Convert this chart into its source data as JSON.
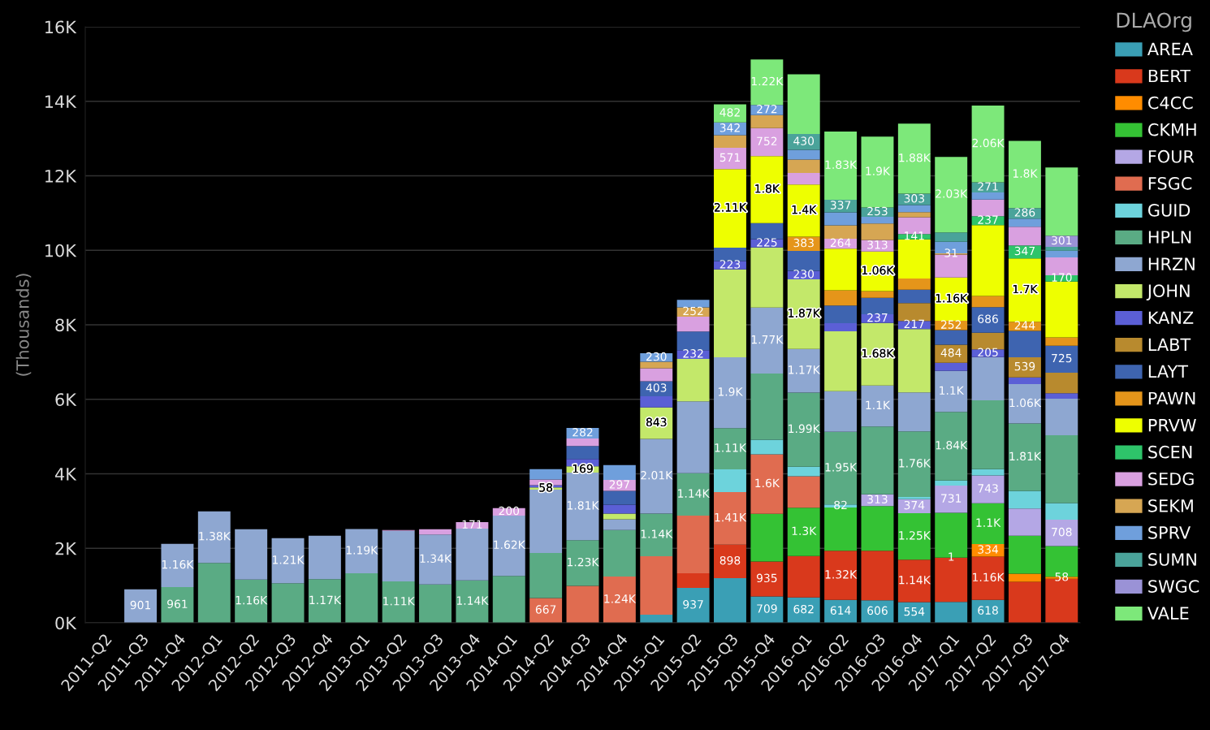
{
  "chart_data": {
    "type": "bar",
    "stacked": true,
    "ylabel": "(Thousands)",
    "legend_title": "DLAOrg",
    "legend": "right",
    "grid": "y",
    "ylim": [
      0,
      16000
    ],
    "yticks": [
      {
        "value": 0,
        "label": "0K"
      },
      {
        "value": 2000,
        "label": "2K"
      },
      {
        "value": 4000,
        "label": "4K"
      },
      {
        "value": 6000,
        "label": "6K"
      },
      {
        "value": 8000,
        "label": "8K"
      },
      {
        "value": 10000,
        "label": "10K"
      },
      {
        "value": 12000,
        "label": "12K"
      },
      {
        "value": 14000,
        "label": "14K"
      },
      {
        "value": 16000,
        "label": "16K"
      }
    ],
    "categories": [
      "2011-Q2",
      "2011-Q3",
      "2011-Q4",
      "2012-Q1",
      "2012-Q2",
      "2012-Q3",
      "2012-Q4",
      "2013-Q1",
      "2013-Q2",
      "2013-Q3",
      "2013-Q4",
      "2014-Q1",
      "2014-Q2",
      "2014-Q3",
      "2014-Q4",
      "2015-Q1",
      "2015-Q2",
      "2015-Q3",
      "2015-Q4",
      "2016-Q1",
      "2016-Q2",
      "2016-Q3",
      "2016-Q4",
      "2017-Q1",
      "2017-Q2",
      "2017-Q3",
      "2017-Q4"
    ],
    "series": [
      {
        "name": "AREA",
        "color": "#3a9fb5",
        "values": [
          null,
          null,
          null,
          null,
          null,
          null,
          null,
          null,
          null,
          null,
          null,
          null,
          null,
          null,
          null,
          220,
          937,
          1200,
          709,
          682,
          614,
          606,
          554,
          560,
          618,
          null,
          null
        ],
        "value_labels": [
          null,
          null,
          null,
          null,
          null,
          null,
          null,
          null,
          null,
          null,
          null,
          null,
          null,
          null,
          null,
          null,
          "937",
          null,
          "709",
          "682",
          "614",
          "606",
          "554",
          null,
          "618",
          null,
          null
        ]
      },
      {
        "name": "BERT",
        "color": "#d9391c",
        "values": [
          null,
          null,
          null,
          null,
          null,
          null,
          null,
          null,
          null,
          null,
          null,
          null,
          null,
          null,
          null,
          null,
          390,
          898,
          935,
          1110,
          1320,
          1330,
          1140,
          1190,
          1160,
          1100,
          1180
        ],
        "value_labels": [
          null,
          null,
          null,
          null,
          null,
          null,
          null,
          null,
          null,
          null,
          null,
          null,
          null,
          null,
          null,
          null,
          null,
          "898",
          "935",
          null,
          "1.32K",
          null,
          "1.14K",
          null,
          "1.16K",
          null,
          null
        ]
      },
      {
        "name": "C4CC",
        "color": "#ff8c00",
        "values": [
          null,
          null,
          null,
          null,
          null,
          null,
          null,
          null,
          null,
          null,
          null,
          null,
          null,
          null,
          null,
          null,
          null,
          null,
          null,
          null,
          null,
          null,
          null,
          1,
          334,
          220,
          58
        ],
        "value_labels": [
          null,
          null,
          null,
          null,
          null,
          null,
          null,
          null,
          null,
          null,
          null,
          null,
          null,
          null,
          null,
          null,
          null,
          null,
          null,
          null,
          null,
          null,
          null,
          "1",
          "334",
          null,
          "58"
        ]
      },
      {
        "name": "CKMH",
        "color": "#34c234",
        "values": [
          null,
          null,
          null,
          null,
          null,
          null,
          null,
          null,
          null,
          null,
          null,
          null,
          null,
          null,
          null,
          null,
          null,
          null,
          1280,
          1300,
          1160,
          1200,
          1250,
          1200,
          1100,
          1020,
          820
        ],
        "value_labels": [
          null,
          null,
          null,
          null,
          null,
          null,
          null,
          null,
          null,
          null,
          null,
          null,
          null,
          null,
          null,
          null,
          null,
          null,
          null,
          "1.3K",
          null,
          null,
          "1.25K",
          null,
          "1.1K",
          null,
          null
        ]
      },
      {
        "name": "FOUR",
        "color": "#b4a7e5",
        "values": [
          null,
          null,
          null,
          null,
          null,
          null,
          null,
          null,
          null,
          null,
          null,
          null,
          null,
          null,
          null,
          null,
          null,
          null,
          null,
          null,
          null,
          313,
          374,
          731,
          743,
          730,
          708
        ],
        "value_labels": [
          null,
          null,
          null,
          null,
          null,
          null,
          null,
          null,
          null,
          null,
          null,
          null,
          null,
          null,
          null,
          null,
          null,
          null,
          null,
          null,
          null,
          "313",
          "374",
          "731",
          "743",
          null,
          "708"
        ]
      },
      {
        "name": "FSGC",
        "color": "#e06c50",
        "values": [
          null,
          null,
          null,
          null,
          null,
          null,
          null,
          null,
          null,
          null,
          null,
          null,
          667,
          990,
          1240,
          1570,
          1550,
          1410,
          1600,
          840,
          null,
          null,
          null,
          null,
          null,
          null,
          null
        ],
        "value_labels": [
          null,
          null,
          null,
          null,
          null,
          null,
          null,
          null,
          null,
          null,
          null,
          null,
          "667",
          null,
          "1.24K",
          null,
          null,
          "1.41K",
          "1.6K",
          null,
          null,
          null,
          null,
          null,
          null,
          null,
          null
        ]
      },
      {
        "name": "GUID",
        "color": "#6dd3dc",
        "values": [
          null,
          null,
          null,
          null,
          null,
          null,
          null,
          null,
          null,
          null,
          null,
          null,
          null,
          null,
          null,
          null,
          null,
          610,
          390,
          260,
          82,
          null,
          60,
          140,
          170,
          470,
          450
        ],
        "value_labels": [
          null,
          null,
          null,
          null,
          null,
          null,
          null,
          null,
          null,
          null,
          null,
          null,
          null,
          null,
          null,
          null,
          null,
          null,
          null,
          null,
          "82",
          null,
          null,
          null,
          null,
          null,
          null
        ]
      },
      {
        "name": "HPLN",
        "color": "#5aab84",
        "values": [
          null,
          null,
          961,
          1610,
          1160,
          1060,
          1170,
          1330,
          1110,
          1030,
          1140,
          1260,
          1210,
          1230,
          1250,
          1140,
          1140,
          1110,
          1780,
          1990,
          1950,
          1820,
          1760,
          1840,
          1850,
          1810,
          1820
        ],
        "value_labels": [
          null,
          null,
          "961",
          null,
          "1.16K",
          null,
          "1.17K",
          null,
          "1.11K",
          null,
          "1.14K",
          null,
          null,
          "1.23K",
          null,
          "1.14K",
          "1.14K",
          "1.11K",
          null,
          "1.99K",
          "1.95K",
          null,
          "1.76K",
          "1.84K",
          null,
          "1.81K",
          null
        ]
      },
      {
        "name": "HRZN",
        "color": "#8ea7d1",
        "values": [
          null,
          901,
          1160,
          1380,
          1350,
          1210,
          1170,
          1190,
          1360,
          1340,
          1390,
          1620,
          1700,
          1810,
          290,
          2010,
          1930,
          1900,
          1770,
          1170,
          1090,
          1100,
          1050,
          1100,
          1160,
          1060,
          980
        ],
        "value_labels": [
          null,
          "901",
          "1.16K",
          "1.38K",
          null,
          "1.21K",
          null,
          "1.19K",
          null,
          "1.34K",
          null,
          "1.62K",
          null,
          "1.81K",
          null,
          "2.01K",
          null,
          "1.9K",
          "1.77K",
          "1.17K",
          null,
          "1.1K",
          null,
          "1.1K",
          null,
          "1.06K",
          null
        ]
      },
      {
        "name": "JOHN",
        "color": "#c3e86a",
        "values": [
          null,
          null,
          null,
          null,
          null,
          null,
          null,
          null,
          null,
          null,
          null,
          null,
          58,
          169,
          150,
          843,
          1140,
          2360,
          1610,
          1870,
          1610,
          1680,
          1700,
          null,
          null,
          null,
          null
        ],
        "value_labels": [
          null,
          null,
          null,
          null,
          null,
          null,
          null,
          null,
          null,
          null,
          null,
          null,
          "58",
          "169",
          null,
          "843",
          null,
          null,
          null,
          "1.87K",
          null,
          "1.68K",
          null,
          null,
          null,
          null,
          null
        ]
      },
      {
        "name": "KANZ",
        "color": "#5b5fd6",
        "values": [
          null,
          null,
          null,
          null,
          null,
          null,
          null,
          null,
          null,
          null,
          null,
          null,
          60,
          200,
          240,
          300,
          232,
          223,
          225,
          230,
          220,
          237,
          217,
          220,
          205,
          180,
          150
        ],
        "value_labels": [
          null,
          null,
          null,
          null,
          null,
          null,
          null,
          null,
          null,
          null,
          null,
          null,
          null,
          null,
          null,
          null,
          "232",
          "223",
          "225",
          "230",
          null,
          "237",
          "217",
          null,
          "205",
          null,
          null
        ]
      },
      {
        "name": "LABT",
        "color": "#b88a2e",
        "values": [
          null,
          null,
          null,
          null,
          null,
          null,
          null,
          null,
          null,
          null,
          null,
          null,
          null,
          null,
          null,
          null,
          null,
          null,
          null,
          null,
          null,
          null,
          480,
          484,
          450,
          539,
          550
        ],
        "value_labels": [
          null,
          null,
          null,
          null,
          null,
          null,
          null,
          null,
          null,
          null,
          null,
          null,
          null,
          null,
          null,
          null,
          null,
          null,
          null,
          null,
          null,
          null,
          null,
          "484",
          null,
          "539",
          null
        ]
      },
      {
        "name": "LAYT",
        "color": "#3e64b0",
        "values": [
          null,
          null,
          null,
          null,
          null,
          null,
          null,
          null,
          null,
          null,
          null,
          null,
          null,
          350,
          370,
          403,
          500,
          360,
          430,
          530,
          470,
          440,
          360,
          390,
          686,
          710,
          725
        ],
        "value_labels": [
          null,
          null,
          null,
          null,
          null,
          null,
          null,
          null,
          null,
          null,
          null,
          null,
          null,
          null,
          null,
          "403",
          null,
          null,
          null,
          null,
          null,
          null,
          null,
          null,
          "686",
          null,
          "725"
        ]
      },
      {
        "name": "PAWN",
        "color": "#e5951a",
        "values": [
          null,
          null,
          null,
          null,
          null,
          null,
          null,
          null,
          null,
          null,
          null,
          null,
          null,
          null,
          null,
          null,
          null,
          null,
          null,
          383,
          410,
          180,
          300,
          252,
          300,
          244,
          220
        ],
        "value_labels": [
          null,
          null,
          null,
          null,
          null,
          null,
          null,
          null,
          null,
          null,
          null,
          null,
          null,
          null,
          null,
          null,
          null,
          null,
          null,
          "383",
          null,
          null,
          null,
          "252",
          null,
          "244",
          null
        ]
      },
      {
        "name": "PRVW",
        "color": "#eeff00",
        "values": [
          null,
          null,
          null,
          null,
          null,
          null,
          null,
          null,
          null,
          null,
          null,
          null,
          null,
          null,
          null,
          null,
          null,
          2110,
          1800,
          1400,
          1120,
          1060,
          1050,
          1160,
          1900,
          1700,
          1500
        ],
        "value_labels": [
          null,
          null,
          null,
          null,
          null,
          null,
          null,
          null,
          null,
          null,
          null,
          null,
          null,
          null,
          null,
          null,
          null,
          "2.11K",
          "1.8K",
          "1.4K",
          null,
          "1.06K",
          null,
          "1.16K",
          null,
          "1.7K",
          null
        ]
      },
      {
        "name": "SCEN",
        "color": "#2ec46a",
        "values": [
          null,
          null,
          null,
          null,
          null,
          null,
          null,
          null,
          null,
          null,
          null,
          null,
          null,
          null,
          null,
          null,
          null,
          null,
          null,
          null,
          null,
          null,
          141,
          null,
          237,
          347,
          170
        ],
        "value_labels": [
          null,
          null,
          null,
          null,
          null,
          null,
          null,
          null,
          null,
          null,
          null,
          null,
          null,
          null,
          null,
          null,
          null,
          null,
          null,
          null,
          null,
          null,
          "141",
          null,
          "237",
          "347",
          "170"
        ]
      },
      {
        "name": "SEDG",
        "color": "#d9a0e0",
        "values": [
          null,
          null,
          null,
          null,
          null,
          null,
          null,
          null,
          20,
          140,
          171,
          200,
          150,
          200,
          297,
          350,
          400,
          571,
          752,
          310,
          264,
          313,
          450,
          620,
          450,
          500,
          480
        ],
        "value_labels": [
          null,
          null,
          null,
          null,
          null,
          null,
          null,
          null,
          null,
          null,
          "171",
          "200",
          null,
          null,
          "297",
          null,
          null,
          "571",
          "752",
          null,
          "264",
          "313",
          null,
          null,
          null,
          null,
          null
        ]
      },
      {
        "name": "SEKM",
        "color": "#d6a653",
        "values": [
          null,
          null,
          null,
          null,
          null,
          null,
          null,
          null,
          null,
          null,
          null,
          null,
          null,
          null,
          null,
          170,
          252,
          340,
          350,
          360,
          360,
          440,
          140,
          31,
          null,
          null,
          null
        ],
        "value_labels": [
          null,
          null,
          null,
          null,
          null,
          null,
          null,
          null,
          null,
          null,
          null,
          null,
          null,
          null,
          null,
          null,
          "252",
          null,
          null,
          null,
          null,
          null,
          null,
          "31",
          null,
          null,
          null
        ]
      },
      {
        "name": "SPRV",
        "color": "#6f9fdc",
        "values": [
          null,
          null,
          null,
          null,
          null,
          null,
          null,
          null,
          null,
          null,
          null,
          null,
          280,
          282,
          400,
          230,
          200,
          342,
          272,
          260,
          350,
          180,
          190,
          310,
          190,
          220,
          180
        ],
        "value_labels": [
          null,
          null,
          null,
          null,
          null,
          null,
          null,
          null,
          null,
          null,
          null,
          null,
          null,
          "282",
          null,
          "230",
          null,
          "342",
          "272",
          null,
          null,
          null,
          null,
          null,
          null,
          null,
          null
        ]
      },
      {
        "name": "SUMN",
        "color": "#4aa39a",
        "values": [
          null,
          null,
          null,
          null,
          null,
          null,
          null,
          null,
          null,
          null,
          null,
          null,
          null,
          null,
          null,
          null,
          null,
          null,
          null,
          430,
          337,
          253,
          303,
          250,
          271,
          286,
          100
        ],
        "value_labels": [
          null,
          null,
          null,
          null,
          null,
          null,
          null,
          null,
          null,
          null,
          null,
          null,
          null,
          null,
          null,
          null,
          null,
          null,
          null,
          "430",
          "337",
          "253",
          "303",
          null,
          "271",
          "286",
          null
        ]
      },
      {
        "name": "SWGC",
        "color": "#9a92d6",
        "values": [
          null,
          null,
          null,
          null,
          null,
          null,
          null,
          null,
          null,
          null,
          null,
          null,
          null,
          null,
          null,
          null,
          null,
          null,
          null,
          null,
          null,
          null,
          null,
          null,
          null,
          null,
          301
        ],
        "value_labels": [
          null,
          null,
          null,
          null,
          null,
          null,
          null,
          null,
          null,
          null,
          null,
          null,
          null,
          null,
          null,
          null,
          null,
          null,
          null,
          null,
          null,
          null,
          null,
          null,
          null,
          null,
          "301"
        ]
      },
      {
        "name": "VALE",
        "color": "#7de87a",
        "values": [
          null,
          null,
          null,
          null,
          null,
          null,
          null,
          null,
          null,
          null,
          null,
          null,
          null,
          null,
          null,
          null,
          null,
          482,
          1220,
          1600,
          1830,
          1900,
          1880,
          2030,
          2060,
          1800,
          1830
        ],
        "value_labels": [
          null,
          null,
          null,
          null,
          null,
          null,
          null,
          null,
          null,
          null,
          null,
          null,
          null,
          null,
          null,
          null,
          null,
          "482",
          "1.22K",
          null,
          "1.83K",
          "1.9K",
          "1.88K",
          "2.03K",
          "2.06K",
          "1.8K",
          null
        ]
      }
    ]
  }
}
